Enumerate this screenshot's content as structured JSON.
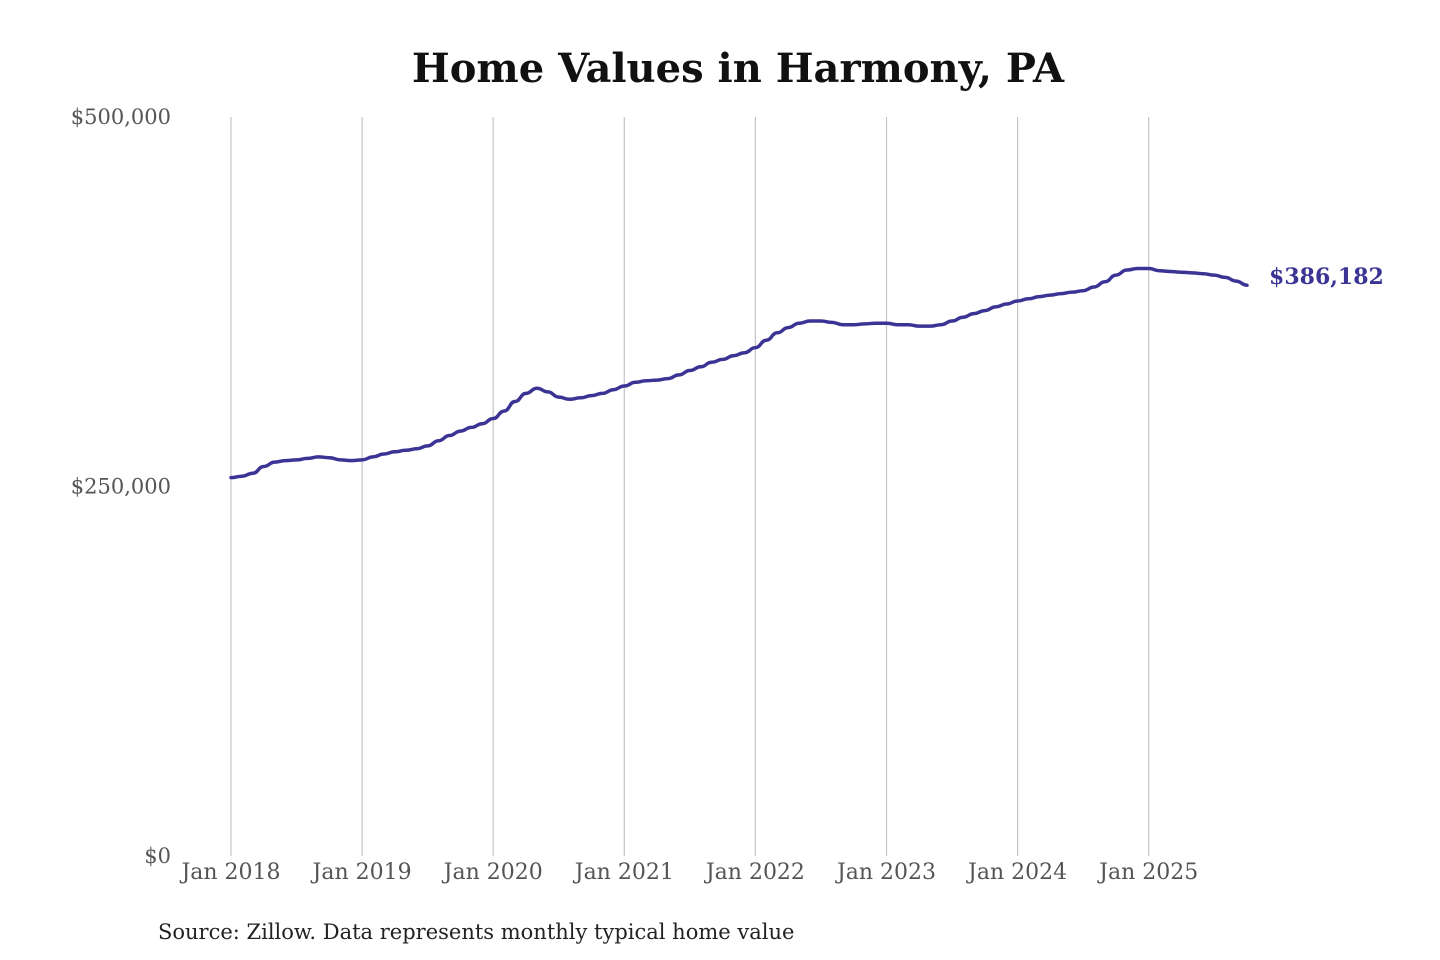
{
  "chart_data": {
    "type": "line",
    "title": "Home Values in Harmony, PA",
    "source": "Source: Zillow. Data represents monthly typical home value",
    "xlabel": "",
    "ylabel": "",
    "ylim": [
      0,
      500000
    ],
    "y_ticks": [
      {
        "value": 0,
        "label": "$0"
      },
      {
        "value": 250000,
        "label": "$250,000"
      },
      {
        "value": 500000,
        "label": "$500,000"
      }
    ],
    "x_ticks": [
      {
        "value": "2018-01",
        "label": "Jan 2018"
      },
      {
        "value": "2019-01",
        "label": "Jan 2019"
      },
      {
        "value": "2020-01",
        "label": "Jan 2020"
      },
      {
        "value": "2021-01",
        "label": "Jan 2021"
      },
      {
        "value": "2022-01",
        "label": "Jan 2022"
      },
      {
        "value": "2023-01",
        "label": "Jan 2023"
      },
      {
        "value": "2024-01",
        "label": "Jan 2024"
      },
      {
        "value": "2025-01",
        "label": "Jan 2025"
      }
    ],
    "grid": "vertical",
    "line_color": "#3b3494",
    "end_label": "$386,182",
    "series": [
      {
        "x": [
          "2018-01",
          "2018-02",
          "2018-03",
          "2018-04",
          "2018-05",
          "2018-06",
          "2018-07",
          "2018-08",
          "2018-09",
          "2018-10",
          "2018-11",
          "2018-12",
          "2019-01",
          "2019-02",
          "2019-03",
          "2019-04",
          "2019-05",
          "2019-06",
          "2019-07",
          "2019-08",
          "2019-09",
          "2019-10",
          "2019-11",
          "2019-12",
          "2020-01",
          "2020-02",
          "2020-03",
          "2020-04",
          "2020-05",
          "2020-06",
          "2020-07",
          "2020-08",
          "2020-09",
          "2020-10",
          "2020-11",
          "2020-12",
          "2021-01",
          "2021-02",
          "2021-03",
          "2021-04",
          "2021-05",
          "2021-06",
          "2021-07",
          "2021-08",
          "2021-09",
          "2021-10",
          "2021-11",
          "2021-12",
          "2022-01",
          "2022-02",
          "2022-03",
          "2022-04",
          "2022-05",
          "2022-06",
          "2022-07",
          "2022-08",
          "2022-09",
          "2022-10",
          "2022-11",
          "2022-12",
          "2023-01",
          "2023-02",
          "2023-03",
          "2023-04",
          "2023-05",
          "2023-06",
          "2023-07",
          "2023-08",
          "2023-09",
          "2023-10",
          "2023-11",
          "2023-12",
          "2024-01",
          "2024-02",
          "2024-03",
          "2024-04",
          "2024-05",
          "2024-06",
          "2024-07",
          "2024-08",
          "2024-09",
          "2024-10",
          "2024-11",
          "2024-12",
          "2025-01",
          "2025-02",
          "2025-03",
          "2025-04",
          "2025-05",
          "2025-06",
          "2025-07",
          "2025-08",
          "2025-09",
          "2025-10"
        ],
        "values": [
          256000,
          257000,
          259000,
          263500,
          266500,
          267500,
          268000,
          269000,
          270000,
          269500,
          268000,
          267500,
          268000,
          270000,
          272000,
          273500,
          274500,
          275500,
          277500,
          281000,
          284500,
          287500,
          290000,
          292500,
          296000,
          301000,
          307500,
          313000,
          316500,
          314000,
          310500,
          309000,
          310000,
          311500,
          313000,
          315500,
          318000,
          320500,
          321500,
          322000,
          323000,
          325500,
          328500,
          331000,
          334000,
          336000,
          338500,
          340500,
          344000,
          349000,
          354000,
          357500,
          360500,
          362000,
          362000,
          361000,
          359500,
          359500,
          360000,
          360500,
          360500,
          359500,
          359500,
          358500,
          358500,
          359500,
          362000,
          364500,
          367000,
          369000,
          371500,
          373500,
          375500,
          377000,
          378500,
          379500,
          380500,
          381500,
          382500,
          385000,
          388500,
          393000,
          396500,
          397500,
          397500,
          396000,
          395500,
          395000,
          394500,
          394000,
          393000,
          391500,
          389000,
          386182
        ]
      }
    ]
  }
}
